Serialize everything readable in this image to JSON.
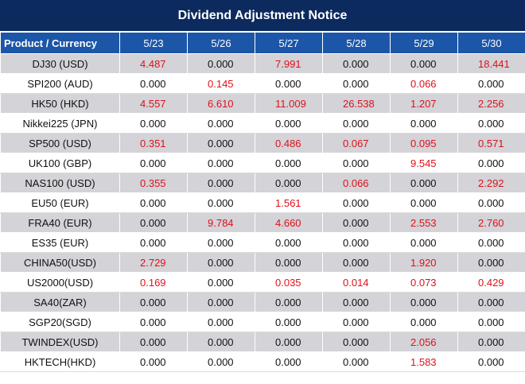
{
  "title": "Dividend Adjustment Notice",
  "header": {
    "product": "Product / Currency",
    "dates": [
      "5/23",
      "5/26",
      "5/27",
      "5/28",
      "5/29",
      "5/30"
    ]
  },
  "colors": {
    "title_bg": "#0d2a5e",
    "header_bg": "#1c56a8",
    "nonzero": "#e0101a"
  },
  "rows": [
    {
      "product": "DJ30 (USD)",
      "values": [
        "4.487",
        "0.000",
        "7.991",
        "0.000",
        "0.000",
        "18.441"
      ]
    },
    {
      "product": "SPI200 (AUD)",
      "values": [
        "0.000",
        "0.145",
        "0.000",
        "0.000",
        "0.066",
        "0.000"
      ]
    },
    {
      "product": "HK50 (HKD)",
      "values": [
        "4.557",
        "6.610",
        "11.009",
        "26.538",
        "1.207",
        "2.256"
      ]
    },
    {
      "product": "Nikkei225 (JPN)",
      "values": [
        "0.000",
        "0.000",
        "0.000",
        "0.000",
        "0.000",
        "0.000"
      ]
    },
    {
      "product": "SP500 (USD)",
      "values": [
        "0.351",
        "0.000",
        "0.486",
        "0.067",
        "0.095",
        "0.571"
      ]
    },
    {
      "product": "UK100 (GBP)",
      "values": [
        "0.000",
        "0.000",
        "0.000",
        "0.000",
        "9.545",
        "0.000"
      ]
    },
    {
      "product": "NAS100 (USD)",
      "values": [
        "0.355",
        "0.000",
        "0.000",
        "0.066",
        "0.000",
        "2.292"
      ]
    },
    {
      "product": "EU50 (EUR)",
      "values": [
        "0.000",
        "0.000",
        "1.561",
        "0.000",
        "0.000",
        "0.000"
      ]
    },
    {
      "product": "FRA40 (EUR)",
      "values": [
        "0.000",
        "9.784",
        "4.660",
        "0.000",
        "2.553",
        "2.760"
      ]
    },
    {
      "product": "ES35 (EUR)",
      "values": [
        "0.000",
        "0.000",
        "0.000",
        "0.000",
        "0.000",
        "0.000"
      ]
    },
    {
      "product": "CHINA50(USD)",
      "values": [
        "2.729",
        "0.000",
        "0.000",
        "0.000",
        "1.920",
        "0.000"
      ]
    },
    {
      "product": "US2000(USD)",
      "values": [
        "0.169",
        "0.000",
        "0.035",
        "0.014",
        "0.073",
        "0.429"
      ]
    },
    {
      "product": "SA40(ZAR)",
      "values": [
        "0.000",
        "0.000",
        "0.000",
        "0.000",
        "0.000",
        "0.000"
      ]
    },
    {
      "product": "SGP20(SGD)",
      "values": [
        "0.000",
        "0.000",
        "0.000",
        "0.000",
        "0.000",
        "0.000"
      ]
    },
    {
      "product": "TWINDEX(USD)",
      "values": [
        "0.000",
        "0.000",
        "0.000",
        "0.000",
        "2.056",
        "0.000"
      ]
    },
    {
      "product": "HKTECH(HKD)",
      "values": [
        "0.000",
        "0.000",
        "0.000",
        "0.000",
        "1.583",
        "0.000"
      ]
    }
  ]
}
